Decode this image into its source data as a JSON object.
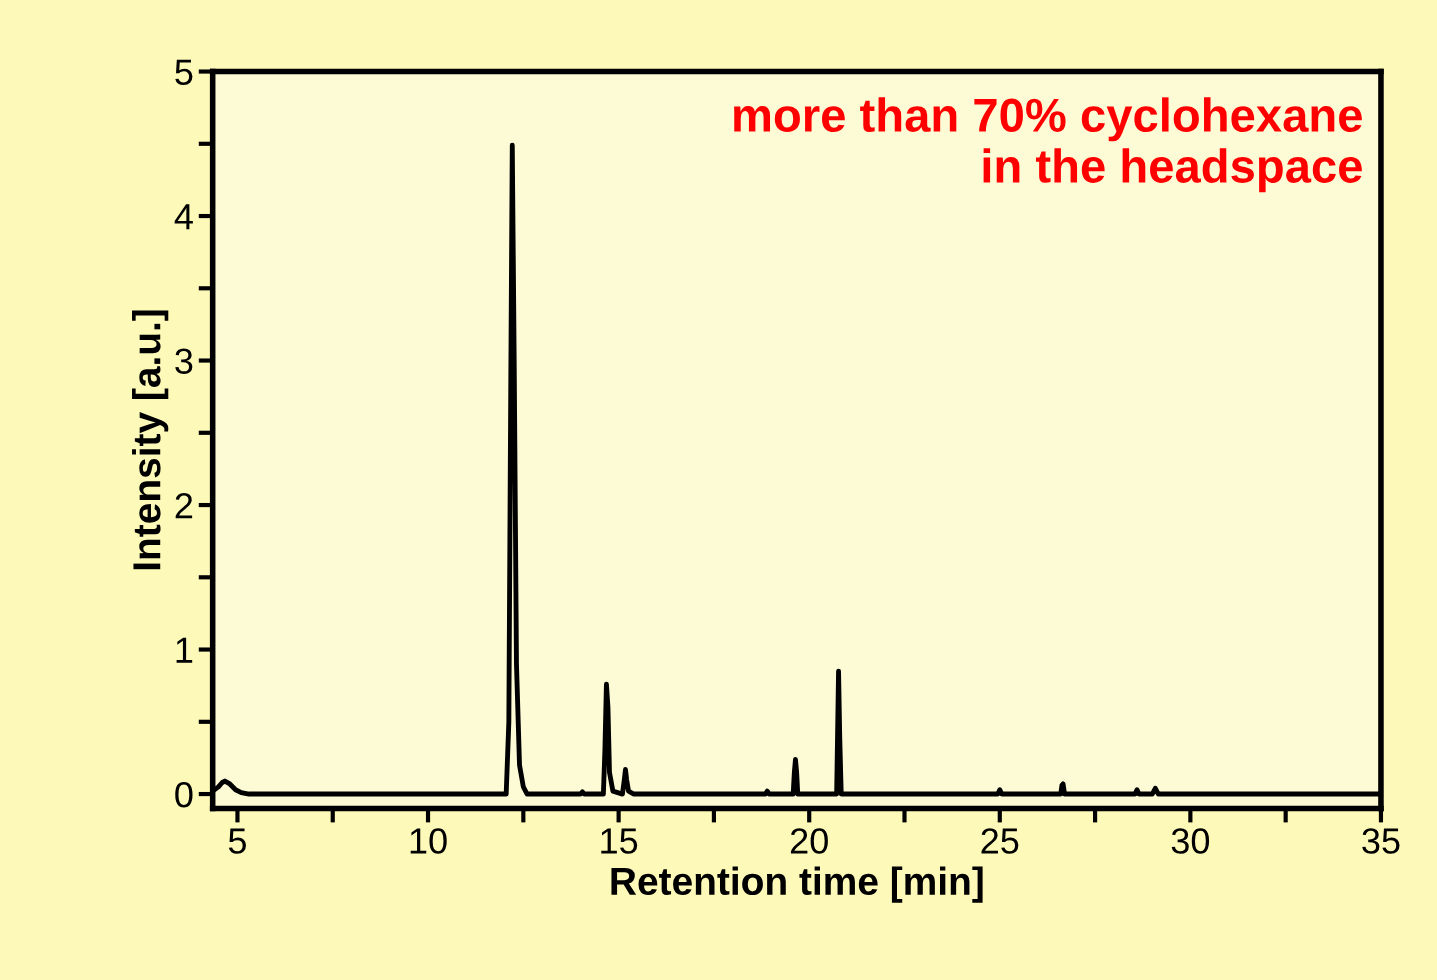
{
  "chart_data": {
    "type": "line",
    "xlabel": "Retention time [min]",
    "ylabel": "Intensity [a.u.]",
    "annotations": [
      "more than 70% cyclohexane\nin the headspace"
    ],
    "series": [
      {
        "color": "#000000",
        "x": [
          4.35,
          4.5,
          4.6,
          4.67,
          4.8,
          4.95,
          5.1,
          5.3,
          12.05,
          12.12,
          12.17,
          12.21,
          12.26,
          12.32,
          12.4,
          12.5,
          12.6,
          14.0,
          14.05,
          14.1,
          14.6,
          14.64,
          14.68,
          14.72,
          14.76,
          14.85,
          15.1,
          15.15,
          15.18,
          15.21,
          15.26,
          15.4,
          18.85,
          18.9,
          18.95,
          19.58,
          19.61,
          19.64,
          19.67,
          19.7,
          20.72,
          20.75,
          20.77,
          20.8,
          20.84,
          24.95,
          25.0,
          25.05,
          26.6,
          26.63,
          26.66,
          26.7,
          28.55,
          28.6,
          28.65,
          29.0,
          29.08,
          29.16,
          35
        ],
        "values": [
          0.02,
          0.05,
          0.08,
          0.09,
          0.07,
          0.03,
          0.01,
          0,
          0,
          0.5,
          2.8,
          4.49,
          3.0,
          0.9,
          0.2,
          0.05,
          0,
          0,
          0.015,
          0,
          0,
          0.3,
          0.76,
          0.6,
          0.15,
          0.02,
          0,
          0.1,
          0.17,
          0.1,
          0.02,
          0,
          0,
          0.02,
          0,
          0,
          0.15,
          0.24,
          0.15,
          0,
          0,
          0.5,
          0.85,
          0.4,
          0,
          0,
          0.03,
          0,
          0,
          0.06,
          0.07,
          0,
          0,
          0.03,
          0,
          0,
          0.04,
          0,
          0
        ]
      }
    ],
    "xlim": [
      4.35,
      35
    ],
    "xticks": [
      5,
      {
        "value": 7.5,
        "label": null
      },
      10,
      {
        "value": 12.5,
        "label": null
      },
      15,
      {
        "value": 17.5,
        "label": null
      },
      20,
      {
        "value": 22.5,
        "label": null
      },
      25,
      {
        "value": 27.5,
        "label": null
      },
      30,
      {
        "value": 32.5,
        "label": null
      },
      35
    ],
    "ylim": [
      -0.1,
      5
    ],
    "yticks": [
      0,
      {
        "value": 0.5,
        "label": null
      },
      1,
      {
        "value": 1.5,
        "label": null
      },
      2,
      {
        "value": 2.5,
        "label": null
      },
      3,
      {
        "value": 3.5,
        "label": null
      },
      4,
      {
        "value": 4.5,
        "label": null
      },
      5
    ],
    "grid": false,
    "marker": "none",
    "line_style": "solid"
  }
}
